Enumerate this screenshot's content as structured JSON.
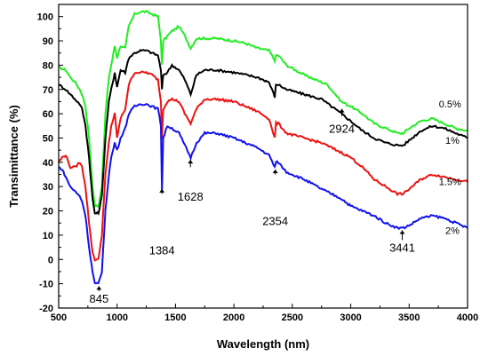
{
  "chart_data": {
    "type": "line",
    "xlabel": "Wavelength (nm)",
    "ylabel": "Transimittance (%)",
    "xlim": [
      500,
      4000
    ],
    "ylim": [
      -20,
      105
    ],
    "x_ticks": [
      500,
      1000,
      1500,
      2000,
      2500,
      3000,
      3500,
      4000
    ],
    "y_ticks": [
      -20,
      -10,
      0,
      10,
      20,
      30,
      40,
      50,
      60,
      70,
      80,
      90,
      100
    ],
    "grid": false,
    "series": [
      {
        "name": "0.5%",
        "color": "#22ee22",
        "points": [
          [
            500,
            79
          ],
          [
            560,
            78
          ],
          [
            600,
            75
          ],
          [
            640,
            73
          ],
          [
            680,
            70
          ],
          [
            700,
            68
          ],
          [
            730,
            63
          ],
          [
            760,
            50
          ],
          [
            790,
            30
          ],
          [
            810,
            22
          ],
          [
            840,
            22
          ],
          [
            870,
            30
          ],
          [
            900,
            60
          ],
          [
            930,
            75
          ],
          [
            950,
            80
          ],
          [
            980,
            88
          ],
          [
            1000,
            83
          ],
          [
            1030,
            88
          ],
          [
            1070,
            87
          ],
          [
            1100,
            96
          ],
          [
            1150,
            101
          ],
          [
            1200,
            102
          ],
          [
            1250,
            102
          ],
          [
            1300,
            101
          ],
          [
            1350,
            100
          ],
          [
            1375,
            90
          ],
          [
            1384,
            80
          ],
          [
            1395,
            90
          ],
          [
            1430,
            92
          ],
          [
            1470,
            94
          ],
          [
            1530,
            96
          ],
          [
            1580,
            92
          ],
          [
            1630,
            87
          ],
          [
            1680,
            91
          ],
          [
            1750,
            91
          ],
          [
            1850,
            91
          ],
          [
            2000,
            90
          ],
          [
            2100,
            89
          ],
          [
            2200,
            87
          ],
          [
            2300,
            86
          ],
          [
            2350,
            82
          ],
          [
            2360,
            84
          ],
          [
            2380,
            84
          ],
          [
            2450,
            80
          ],
          [
            2600,
            76
          ],
          [
            2800,
            72
          ],
          [
            2920,
            65
          ],
          [
            3000,
            63
          ],
          [
            3100,
            60
          ],
          [
            3200,
            56
          ],
          [
            3300,
            54
          ],
          [
            3400,
            52
          ],
          [
            3450,
            52
          ],
          [
            3500,
            54
          ],
          [
            3600,
            57
          ],
          [
            3700,
            58
          ],
          [
            3800,
            56
          ],
          [
            3900,
            54
          ],
          [
            4000,
            53
          ]
        ]
      },
      {
        "name": "1%",
        "color": "#000000",
        "points": [
          [
            500,
            72
          ],
          [
            560,
            70
          ],
          [
            600,
            68
          ],
          [
            640,
            66
          ],
          [
            680,
            64
          ],
          [
            700,
            62
          ],
          [
            730,
            55
          ],
          [
            760,
            42
          ],
          [
            790,
            25
          ],
          [
            810,
            19
          ],
          [
            840,
            19
          ],
          [
            870,
            26
          ],
          [
            900,
            50
          ],
          [
            930,
            65
          ],
          [
            950,
            70
          ],
          [
            980,
            77
          ],
          [
            1000,
            71
          ],
          [
            1030,
            78
          ],
          [
            1070,
            77
          ],
          [
            1100,
            83
          ],
          [
            1150,
            85
          ],
          [
            1200,
            86
          ],
          [
            1250,
            86
          ],
          [
            1300,
            85
          ],
          [
            1350,
            84
          ],
          [
            1375,
            78
          ],
          [
            1384,
            70
          ],
          [
            1395,
            76
          ],
          [
            1430,
            77
          ],
          [
            1470,
            80
          ],
          [
            1530,
            78
          ],
          [
            1580,
            74
          ],
          [
            1630,
            68
          ],
          [
            1680,
            76
          ],
          [
            1750,
            78
          ],
          [
            1850,
            78
          ],
          [
            2000,
            77
          ],
          [
            2100,
            76
          ],
          [
            2200,
            75
          ],
          [
            2300,
            73
          ],
          [
            2350,
            67
          ],
          [
            2360,
            72
          ],
          [
            2380,
            72
          ],
          [
            2450,
            70
          ],
          [
            2600,
            68
          ],
          [
            2750,
            66
          ],
          [
            2920,
            60
          ],
          [
            3000,
            57
          ],
          [
            3100,
            53
          ],
          [
            3200,
            50
          ],
          [
            3300,
            48
          ],
          [
            3400,
            47
          ],
          [
            3450,
            47
          ],
          [
            3500,
            49
          ],
          [
            3600,
            53
          ],
          [
            3700,
            55
          ],
          [
            3800,
            54
          ],
          [
            3900,
            52
          ],
          [
            4000,
            50
          ]
        ]
      },
      {
        "name": "1.5%",
        "color": "#ee1111",
        "points": [
          [
            500,
            40
          ],
          [
            530,
            42
          ],
          [
            560,
            43
          ],
          [
            600,
            38
          ],
          [
            640,
            38
          ],
          [
            680,
            40
          ],
          [
            700,
            38
          ],
          [
            730,
            30
          ],
          [
            760,
            15
          ],
          [
            790,
            3
          ],
          [
            810,
            0
          ],
          [
            840,
            0
          ],
          [
            870,
            10
          ],
          [
            900,
            35
          ],
          [
            930,
            48
          ],
          [
            950,
            55
          ],
          [
            980,
            60
          ],
          [
            1000,
            50
          ],
          [
            1030,
            58
          ],
          [
            1070,
            62
          ],
          [
            1100,
            72
          ],
          [
            1150,
            77
          ],
          [
            1200,
            77
          ],
          [
            1250,
            77
          ],
          [
            1300,
            76
          ],
          [
            1350,
            74
          ],
          [
            1375,
            65
          ],
          [
            1384,
            50
          ],
          [
            1395,
            62
          ],
          [
            1430,
            65
          ],
          [
            1470,
            66
          ],
          [
            1530,
            65
          ],
          [
            1580,
            60
          ],
          [
            1630,
            56
          ],
          [
            1680,
            62
          ],
          [
            1750,
            66
          ],
          [
            1850,
            66
          ],
          [
            2000,
            65
          ],
          [
            2100,
            63
          ],
          [
            2200,
            61
          ],
          [
            2300,
            58
          ],
          [
            2350,
            50
          ],
          [
            2360,
            56
          ],
          [
            2380,
            56
          ],
          [
            2450,
            52
          ],
          [
            2600,
            50
          ],
          [
            2750,
            48
          ],
          [
            2920,
            44
          ],
          [
            3000,
            42
          ],
          [
            3100,
            38
          ],
          [
            3200,
            33
          ],
          [
            3300,
            30
          ],
          [
            3400,
            27
          ],
          [
            3450,
            27
          ],
          [
            3500,
            29
          ],
          [
            3600,
            33
          ],
          [
            3700,
            35
          ],
          [
            3800,
            34
          ],
          [
            3900,
            33
          ],
          [
            4000,
            32
          ]
        ]
      },
      {
        "name": "2%",
        "color": "#1111ee",
        "points": [
          [
            500,
            38
          ],
          [
            530,
            37
          ],
          [
            560,
            34
          ],
          [
            600,
            30
          ],
          [
            640,
            28
          ],
          [
            680,
            26
          ],
          [
            700,
            24
          ],
          [
            730,
            18
          ],
          [
            760,
            5
          ],
          [
            790,
            -5
          ],
          [
            810,
            -10
          ],
          [
            840,
            -10
          ],
          [
            870,
            -5
          ],
          [
            900,
            20
          ],
          [
            930,
            35
          ],
          [
            950,
            42
          ],
          [
            980,
            48
          ],
          [
            1000,
            45
          ],
          [
            1030,
            50
          ],
          [
            1070,
            54
          ],
          [
            1100,
            60
          ],
          [
            1150,
            63
          ],
          [
            1200,
            64
          ],
          [
            1250,
            64
          ],
          [
            1300,
            63
          ],
          [
            1350,
            62
          ],
          [
            1375,
            55
          ],
          [
            1384,
            28
          ],
          [
            1395,
            50
          ],
          [
            1430,
            55
          ],
          [
            1470,
            54
          ],
          [
            1530,
            52
          ],
          [
            1580,
            47
          ],
          [
            1630,
            42
          ],
          [
            1680,
            48
          ],
          [
            1750,
            52
          ],
          [
            1850,
            52
          ],
          [
            2000,
            50
          ],
          [
            2100,
            48
          ],
          [
            2200,
            46
          ],
          [
            2300,
            43
          ],
          [
            2350,
            38
          ],
          [
            2360,
            40
          ],
          [
            2380,
            40
          ],
          [
            2450,
            36
          ],
          [
            2600,
            33
          ],
          [
            2750,
            29
          ],
          [
            2920,
            25
          ],
          [
            3000,
            22
          ],
          [
            3100,
            20
          ],
          [
            3200,
            18
          ],
          [
            3300,
            15
          ],
          [
            3400,
            13
          ],
          [
            3450,
            13
          ],
          [
            3500,
            14
          ],
          [
            3600,
            17
          ],
          [
            3700,
            18
          ],
          [
            3800,
            17
          ],
          [
            3900,
            15
          ],
          [
            4000,
            13
          ]
        ]
      }
    ],
    "annotations": [
      {
        "text": "845",
        "x": 845,
        "y": -16,
        "arrow_from": -13,
        "arrow_to": -11
      },
      {
        "text": "1384",
        "x": 1384,
        "y": 4,
        "arrow_from": 27,
        "arrow_to": 29
      },
      {
        "text": "1628",
        "x": 1628,
        "y": 26,
        "arrow_from": 38,
        "arrow_to": 41
      },
      {
        "text": "2354",
        "x": 2354,
        "y": 16,
        "arrow_from": 35,
        "arrow_to": 37
      },
      {
        "text": "2924",
        "x": 2924,
        "y": 54,
        "arrow_from": 59,
        "arrow_to": 62
      },
      {
        "text": "3441",
        "x": 3441,
        "y": 5,
        "arrow_from": 8,
        "arrow_to": 12
      }
    ],
    "series_labels": [
      {
        "text": "0.5%",
        "x": 3850,
        "y": 64
      },
      {
        "text": "1%",
        "x": 3870,
        "y": 49
      },
      {
        "text": "1.5%",
        "x": 3850,
        "y": 32
      },
      {
        "text": "2%",
        "x": 3870,
        "y": 12
      }
    ]
  }
}
